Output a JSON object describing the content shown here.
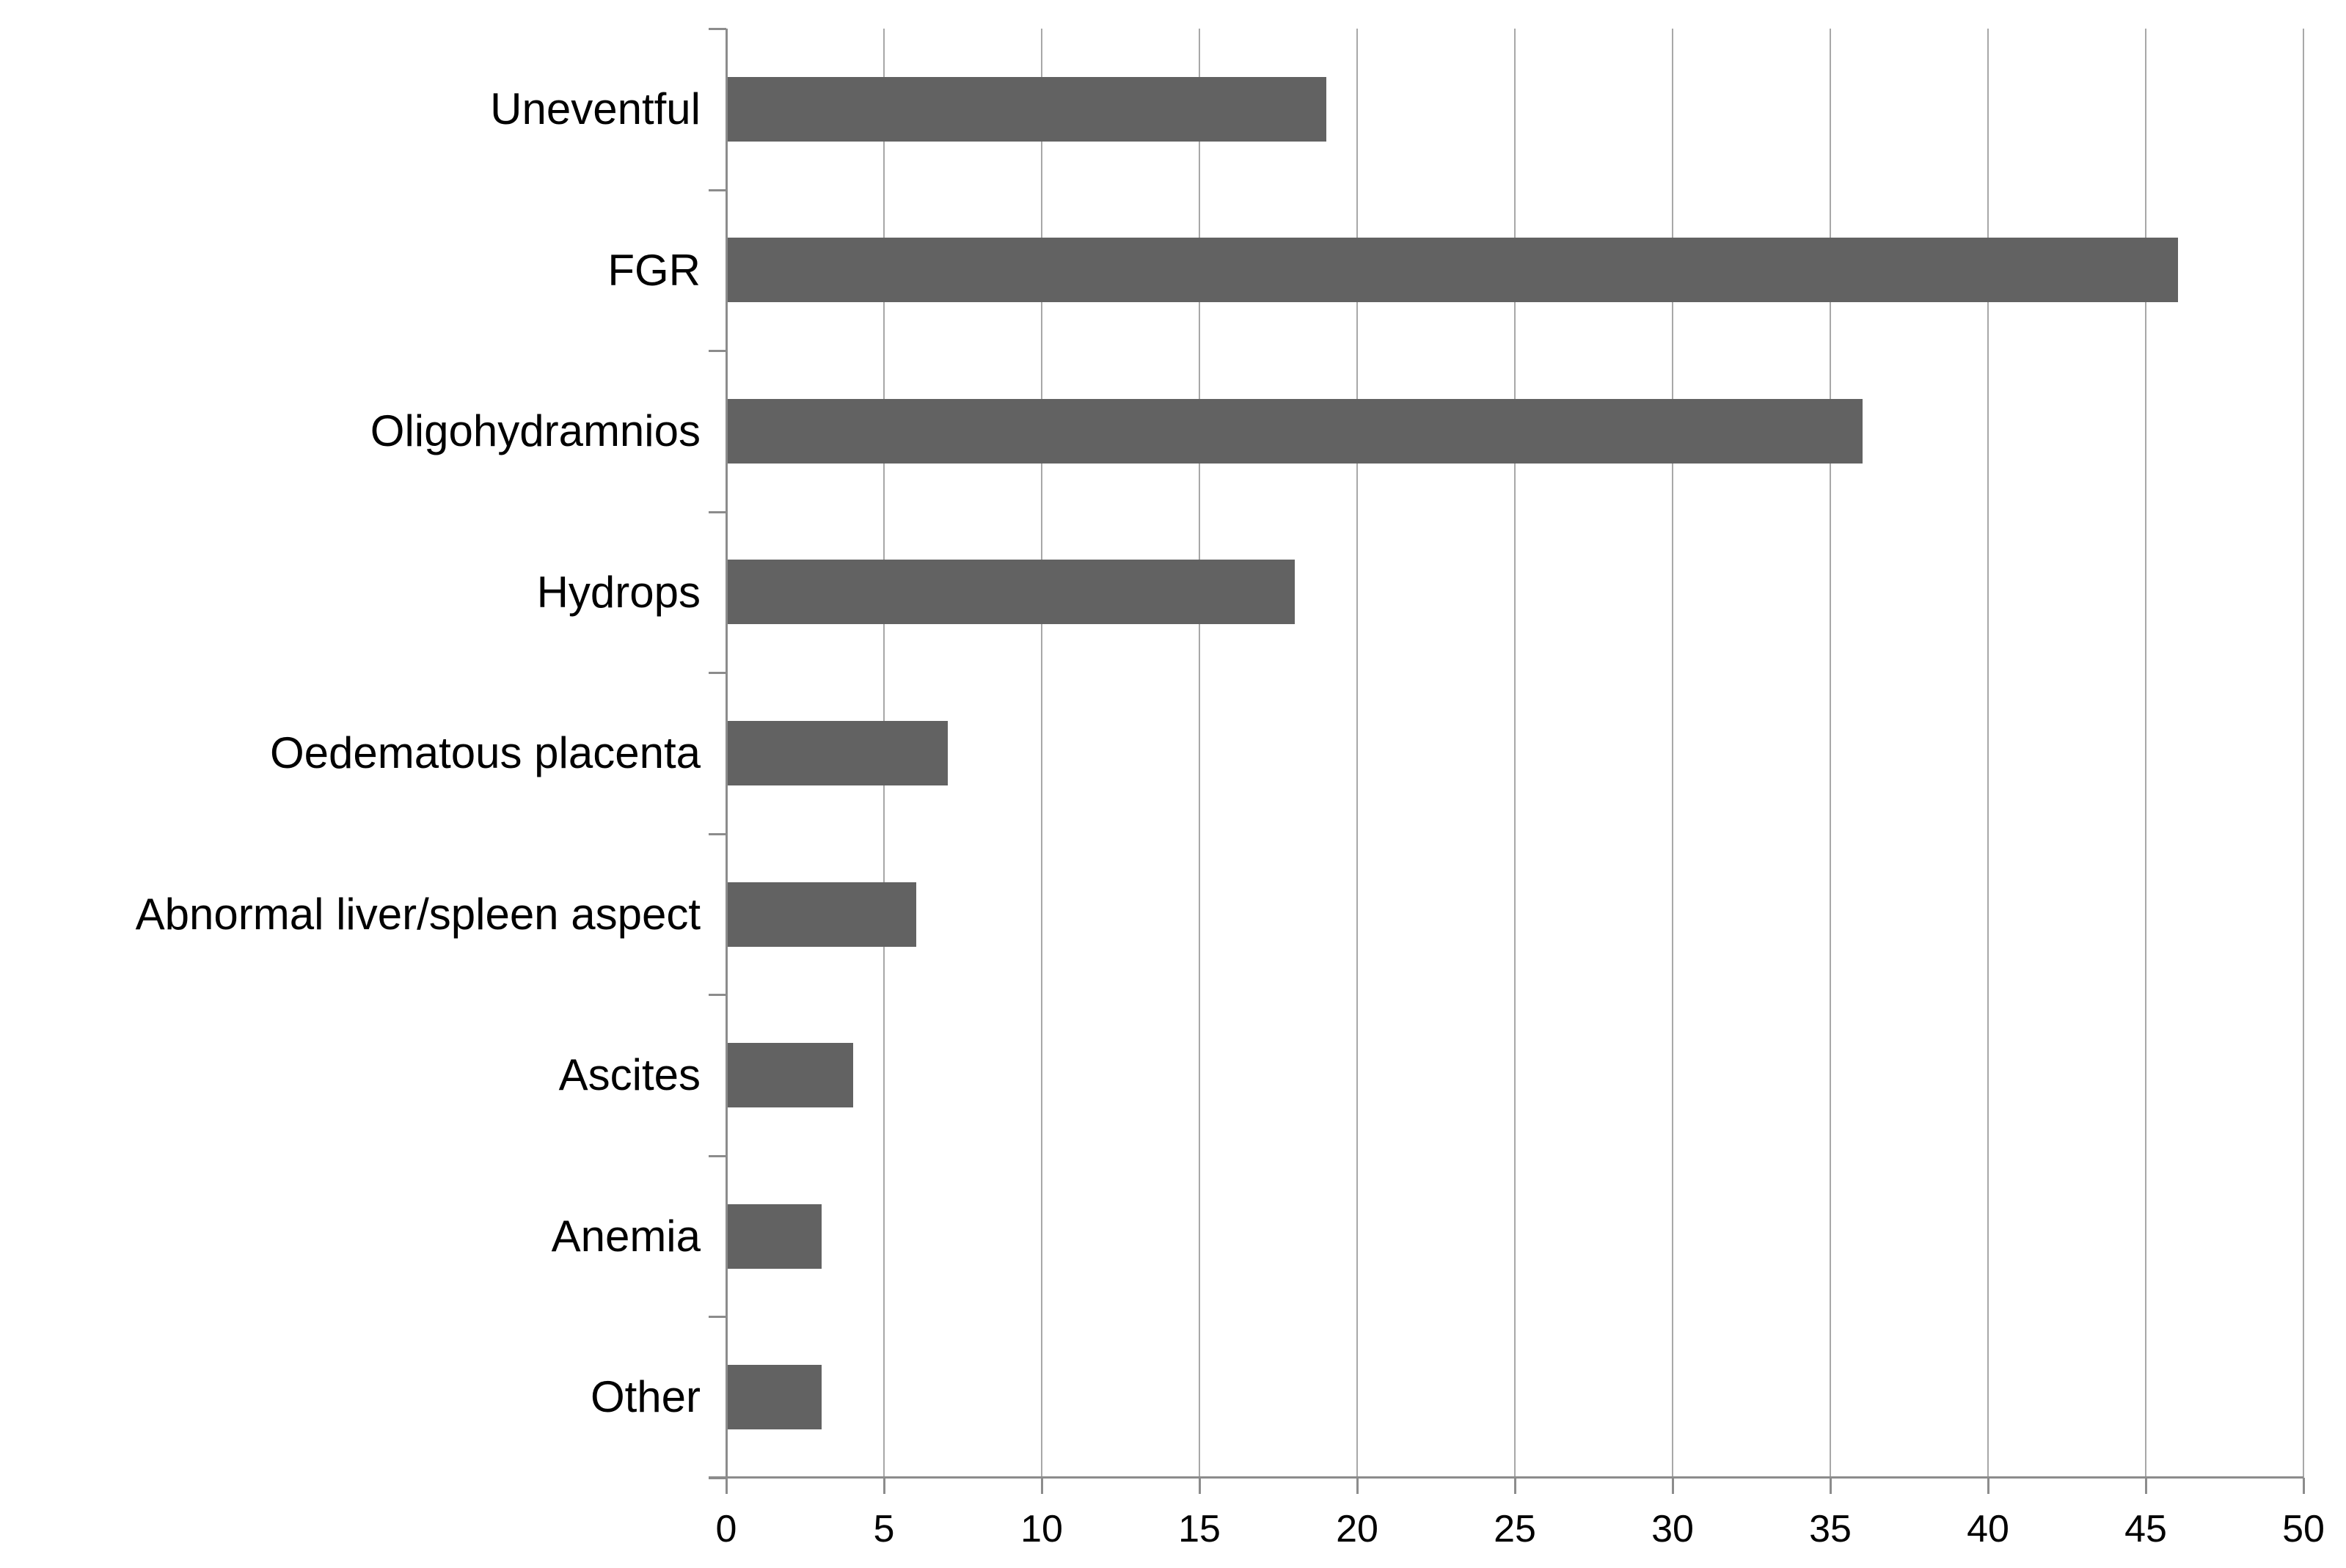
{
  "chart_data": {
    "type": "bar",
    "orientation": "horizontal",
    "title": "",
    "xlabel": "",
    "ylabel": "",
    "categories": [
      "Uneventful",
      "FGR",
      "Oligohydramnios",
      "Hydrops",
      "Oedematous placenta",
      "Abnormal liver/spleen aspect",
      "Ascites",
      "Anemia",
      "Other"
    ],
    "values": [
      19,
      46,
      36,
      18,
      7,
      6,
      4,
      3,
      3
    ],
    "xlim": [
      0,
      50
    ],
    "x_ticks": [
      0,
      5,
      10,
      15,
      20,
      25,
      30,
      35,
      40,
      45,
      50
    ],
    "grid": true,
    "legend": false,
    "colors": {
      "bar": "#626262",
      "gridline": "#a8a8a8",
      "axis": "#8c8c8c",
      "text": "#000000",
      "background": "#ffffff"
    }
  }
}
